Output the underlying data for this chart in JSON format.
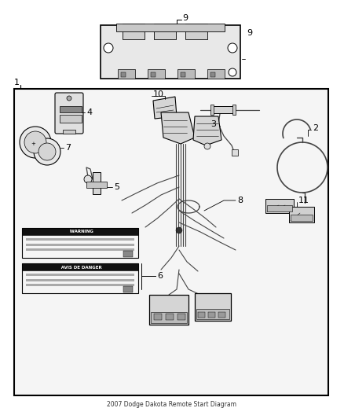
{
  "title": "2007 Dodge Dakota Remote Start Diagram",
  "bg_color": "#ffffff",
  "border_color": "#000000",
  "line_color": "#444444",
  "fig_width": 4.38,
  "fig_height": 5.33,
  "dpi": 100
}
